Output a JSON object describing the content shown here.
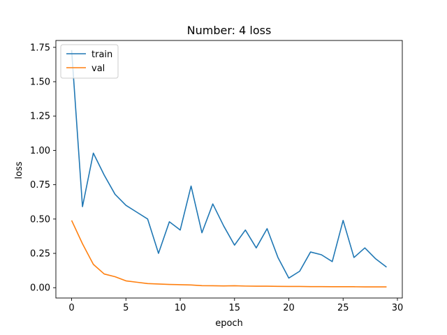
{
  "chart_data": {
    "type": "line",
    "title": "Number: 4 loss",
    "xlabel": "epoch",
    "ylabel": "loss",
    "xlim": [
      -1.45,
      30.45
    ],
    "ylim": [
      -0.075,
      1.8
    ],
    "xticks": [
      0,
      5,
      10,
      15,
      20,
      25,
      30
    ],
    "yticks": [
      0.0,
      0.25,
      0.5,
      0.75,
      1.0,
      1.25,
      1.5,
      1.75
    ],
    "ytick_labels": [
      "0.00",
      "0.25",
      "0.50",
      "0.75",
      "1.00",
      "1.25",
      "1.50",
      "1.75"
    ],
    "grid": false,
    "legend_position": "upper-left",
    "x": [
      0,
      1,
      2,
      3,
      4,
      5,
      6,
      7,
      8,
      9,
      10,
      11,
      12,
      13,
      14,
      15,
      16,
      17,
      18,
      19,
      20,
      21,
      22,
      23,
      24,
      25,
      26,
      27,
      28,
      29
    ],
    "series": [
      {
        "name": "train",
        "color": "#1f77b4",
        "values": [
          1.73,
          0.59,
          0.98,
          0.82,
          0.68,
          0.6,
          0.55,
          0.5,
          0.25,
          0.48,
          0.42,
          0.74,
          0.4,
          0.61,
          0.45,
          0.31,
          0.42,
          0.29,
          0.43,
          0.22,
          0.07,
          0.12,
          0.26,
          0.24,
          0.19,
          0.49,
          0.22,
          0.29,
          0.21,
          0.15
        ]
      },
      {
        "name": "val",
        "color": "#ff7f0e",
        "values": [
          0.49,
          0.32,
          0.17,
          0.1,
          0.08,
          0.05,
          0.04,
          0.03,
          0.027,
          0.024,
          0.022,
          0.02,
          0.015,
          0.014,
          0.013,
          0.014,
          0.012,
          0.011,
          0.011,
          0.01,
          0.009,
          0.009,
          0.008,
          0.008,
          0.007,
          0.007,
          0.007,
          0.006,
          0.006,
          0.006
        ]
      }
    ]
  }
}
